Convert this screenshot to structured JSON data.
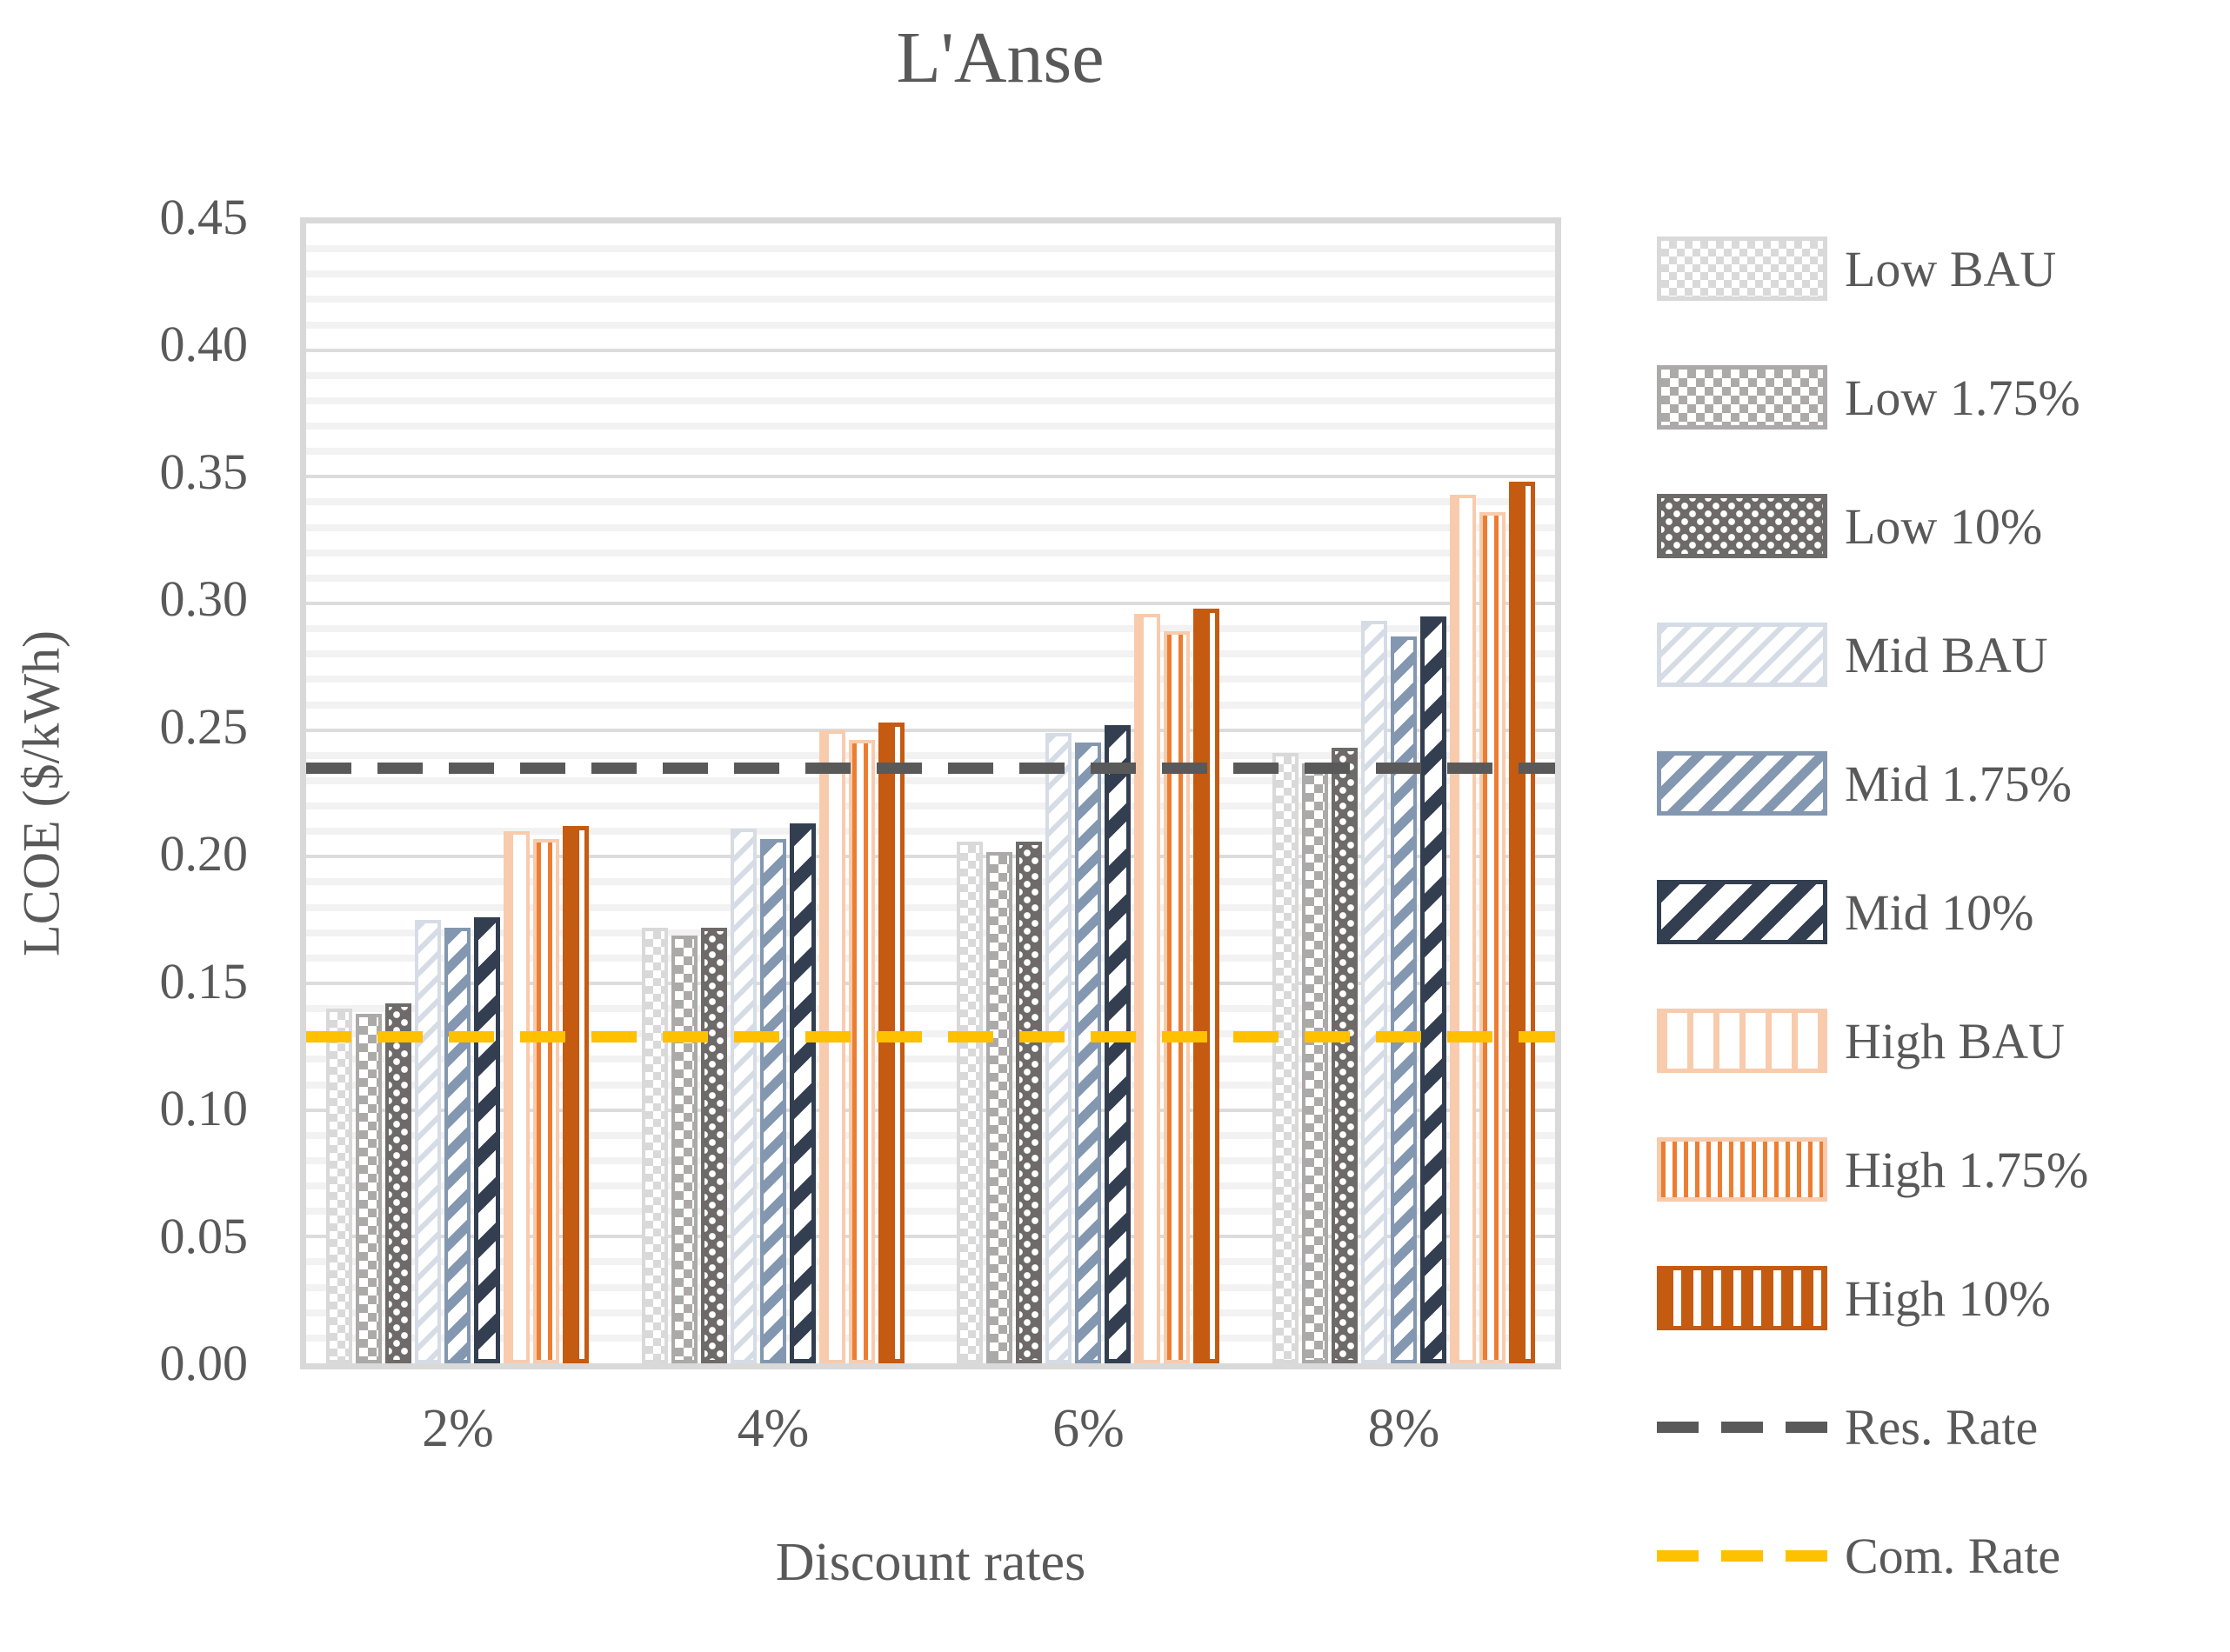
{
  "title": "L'Anse",
  "colors": {
    "text": "#595959",
    "plot_border": "#D9D9D9",
    "grid_minor": "#F2F2F2",
    "grid_major": "#DCDCDC",
    "res_rate_line": "#595959",
    "com_rate_line": "#FFC000"
  },
  "chart_data": {
    "type": "bar",
    "title": "L'Anse",
    "xlabel": "Discount rates",
    "ylabel": "LCOE ($/kWh)",
    "categories": [
      "2%",
      "4%",
      "6%",
      "8%"
    ],
    "series": [
      {
        "name": "Low BAU",
        "pattern": "checker-light",
        "color": "#D9D9D9",
        "border_color": "#D9D9D9",
        "values": [
          0.14,
          0.172,
          0.206,
          0.241
        ]
      },
      {
        "name": "Low 1.75%",
        "pattern": "checker-med",
        "color": "#ACA9A9",
        "border_color": "#ACA9A9",
        "values": [
          0.138,
          0.169,
          0.202,
          0.237
        ]
      },
      {
        "name": "Low 10%",
        "pattern": "dots-dark",
        "color": "#6E6A6A",
        "border_color": "#6E6A6A",
        "values": [
          0.142,
          0.172,
          0.206,
          0.243
        ]
      },
      {
        "name": "Mid BAU",
        "pattern": "diag-light",
        "color": "#D6DCE5",
        "border_color": "#D6DCE5",
        "values": [
          0.175,
          0.211,
          0.249,
          0.293
        ]
      },
      {
        "name": "Mid 1.75%",
        "pattern": "diag-med",
        "color": "#8497B0",
        "border_color": "#8497B0",
        "values": [
          0.172,
          0.207,
          0.245,
          0.287
        ]
      },
      {
        "name": "Mid 10%",
        "pattern": "diag-dark",
        "color": "#333F50",
        "border_color": "#333F50",
        "values": [
          0.176,
          0.213,
          0.252,
          0.295
        ]
      },
      {
        "name": "High BAU",
        "pattern": "vert-light",
        "color": "#F8CBAD",
        "border_color": "#F8CBAD",
        "values": [
          0.21,
          0.25,
          0.296,
          0.343
        ]
      },
      {
        "name": "High 1.75%",
        "pattern": "vert-med",
        "color": "#ED7D31",
        "border_color": "#F8CBAD",
        "values": [
          0.207,
          0.246,
          0.289,
          0.336
        ]
      },
      {
        "name": "High 10%",
        "pattern": "vert-dark",
        "color": "#C55A11",
        "border_color": "#C55A11",
        "values": [
          0.212,
          0.253,
          0.298,
          0.348
        ]
      }
    ],
    "lines": [
      {
        "name": "Res. Rate",
        "value": 0.235,
        "color": "#595959"
      },
      {
        "name": "Com. Rate",
        "value": 0.129,
        "color": "#FFC000"
      }
    ],
    "ylim": [
      0,
      0.45
    ],
    "ytick_step": 0.05,
    "minor_grid_step": 0.01,
    "ytick_labels": [
      "0.00",
      "0.05",
      "0.10",
      "0.15",
      "0.20",
      "0.25",
      "0.30",
      "0.35",
      "0.40",
      "0.45"
    ],
    "legend_position": "right",
    "grid": true
  }
}
